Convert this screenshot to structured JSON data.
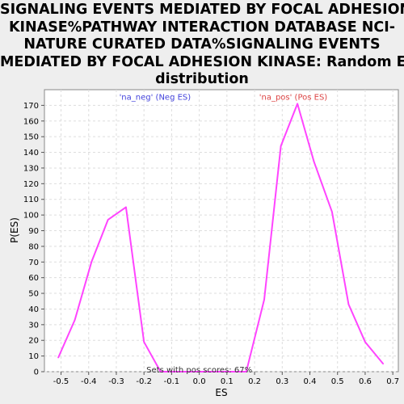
{
  "chart_data": {
    "type": "line",
    "title_lines": [
      "SIGNALING EVENTS MEDIATED BY FOCAL ADHESION",
      "KINASE%PATHWAY INTERACTION DATABASE NCI-",
      "NATURE CURATED DATA%SIGNALING EVENTS",
      "MEDIATED BY FOCAL ADHESION KINASE: Random ES",
      "distribution"
    ],
    "xlabel": "ES",
    "ylabel": "P(ES)",
    "xlim": [
      -0.56,
      0.72
    ],
    "ylim": [
      0,
      180
    ],
    "x_ticks": [
      -0.5,
      -0.4,
      -0.3,
      -0.2,
      -0.1,
      0.0,
      0.1,
      0.2,
      0.3,
      0.4,
      0.5,
      0.6,
      0.7
    ],
    "x_tick_labels": [
      "-0.5",
      "-0.4",
      "-0.3",
      "-0.2",
      "-0.1",
      "0.0",
      "0.1",
      "0.2",
      "0.3",
      "0.4",
      "0.5",
      "0.6",
      "0.7"
    ],
    "y_ticks": [
      0,
      10,
      20,
      30,
      40,
      50,
      60,
      70,
      80,
      90,
      100,
      110,
      120,
      130,
      140,
      150,
      160,
      170
    ],
    "y_tick_labels": [
      "0",
      "10",
      "20",
      "30",
      "40",
      "50",
      "60",
      "70",
      "80",
      "90",
      "100",
      "110",
      "120",
      "130",
      "140",
      "150",
      "160",
      "170"
    ],
    "grid": true,
    "series": [
      {
        "color": "#ff44ff",
        "x": [
          -0.51,
          -0.45,
          -0.39,
          -0.33,
          -0.265,
          -0.2,
          -0.14,
          -0.08,
          -0.02,
          0.04,
          0.1,
          0.17,
          0.235,
          0.295,
          0.355,
          0.415,
          0.48,
          0.54,
          0.6,
          0.665
        ],
        "y": [
          9,
          33,
          70,
          97,
          105,
          19,
          0,
          0,
          0,
          0,
          0,
          0,
          46,
          144,
          171,
          134,
          102,
          43,
          19,
          5
        ]
      }
    ],
    "annotations": [
      {
        "text": "'na_neg' (Neg ES)",
        "x": -0.16,
        "y": 175,
        "color": "#4444dd"
      },
      {
        "text": "'na_pos' (Pos ES)",
        "x": 0.34,
        "y": 175,
        "color": "#dd4444"
      },
      {
        "text": "Sets with pos scores: 67%",
        "x": 0.0,
        "y": 1,
        "color": "#333333"
      }
    ]
  }
}
